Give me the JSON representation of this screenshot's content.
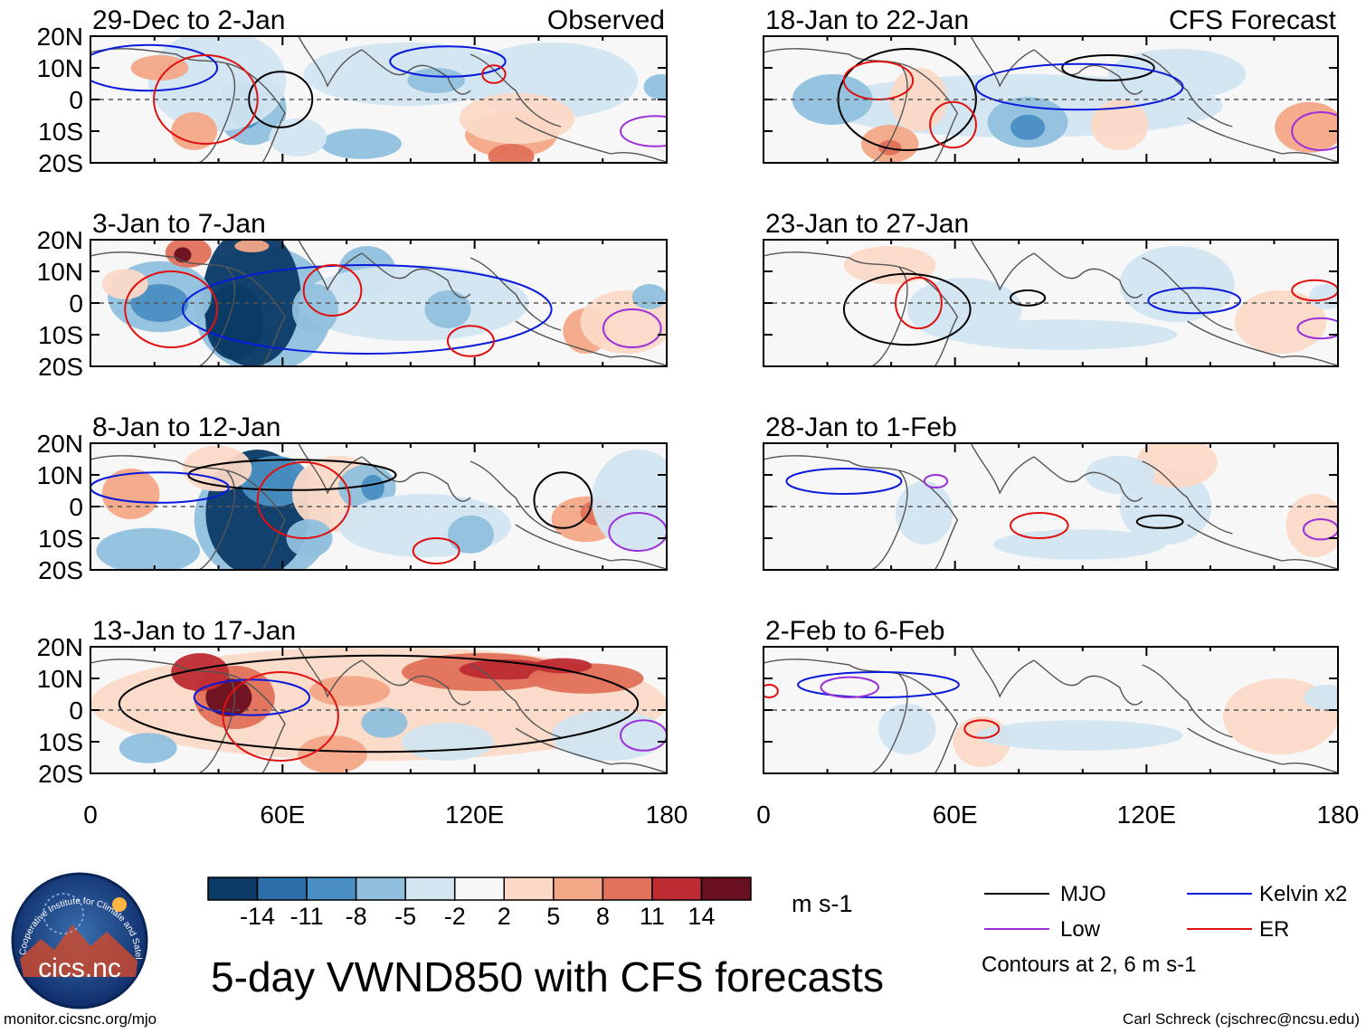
{
  "colors": {
    "neg14": "#0b3a66",
    "neg11": "#2d6ea8",
    "neg8": "#4a8fc3",
    "neg5": "#90c0dd",
    "neg2": "#d2e5f1",
    "zero": "#f7f7f7",
    "pos2": "#fbd9c6",
    "pos5": "#f3a887",
    "pos8": "#e0715a",
    "pos11": "#bd2c33",
    "pos14": "#6a0f1f",
    "mjo": "#000000",
    "kelvin": "#0a1adb",
    "low": "#9b30d9",
    "er": "#e01010",
    "land": "#555555"
  },
  "chart_data": [
    {
      "type": "heatmap",
      "id": "obs1",
      "title": "29-Dec to 2-Jan",
      "tag": "Observed"
    },
    {
      "type": "heatmap",
      "id": "obs2",
      "title": "3-Jan to 7-Jan"
    },
    {
      "type": "heatmap",
      "id": "obs3",
      "title": "8-Jan to 12-Jan"
    },
    {
      "type": "heatmap",
      "id": "obs4",
      "title": "13-Jan to 17-Jan"
    },
    {
      "type": "heatmap",
      "id": "fc1",
      "title": "18-Jan to 22-Jan",
      "tag": "CFS Forecast"
    },
    {
      "type": "heatmap",
      "id": "fc2",
      "title": "23-Jan to 27-Jan"
    },
    {
      "type": "heatmap",
      "id": "fc3",
      "title": "28-Jan to 1-Feb"
    },
    {
      "type": "heatmap",
      "id": "fc4",
      "title": "2-Feb to 6-Feb"
    }
  ],
  "axes": {
    "y_ticks": [
      "20N",
      "10N",
      "0",
      "10S",
      "20S"
    ],
    "x_ticks": [
      "0",
      "60E",
      "120E",
      "180"
    ],
    "xlim": [
      0,
      180
    ],
    "ylim": [
      -20,
      20
    ]
  },
  "colorbar": {
    "labels": [
      "-14",
      "-11",
      "-8",
      "-5",
      "-2",
      "2",
      "5",
      "8",
      "11",
      "14"
    ],
    "unit": "m s-1"
  },
  "legend": {
    "mjo": "MJO",
    "kelvin": "Kelvin x2",
    "low": "Low",
    "er": "ER",
    "note": "Contours at 2, 6 m s-1"
  },
  "main_title": "5-day VWND850 with CFS forecasts",
  "logo_text": "cics.nc",
  "logo_arc_text": "Cooperative Institute for Climate and Satellites",
  "footer_left": "monitor.cicsnc.org/mjo",
  "footer_right": "Carl Schreck (cjschrec@ncsu.edu)"
}
